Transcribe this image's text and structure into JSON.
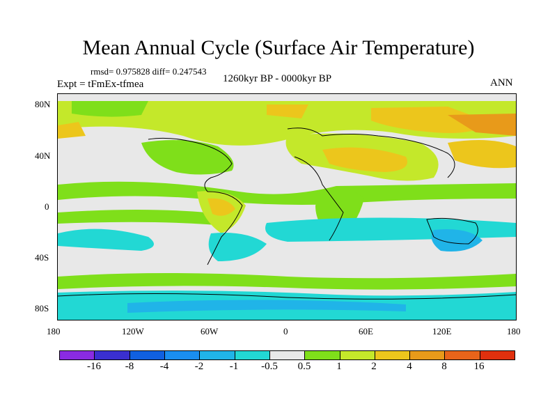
{
  "title": "Mean Annual Cycle (Surface Air Temperature)",
  "stats": "rmsd= 0.975828 diff= 0.247543",
  "expt": "Expt = tFmEx-tfmea",
  "period": "1260kyr BP - 0000kyr BP",
  "season": "ANN",
  "lat_labels": [
    "80N",
    "40N",
    "0",
    "40S",
    "80S"
  ],
  "lon_labels": [
    "180",
    "120W",
    "60W",
    "0",
    "60E",
    "120E",
    "180"
  ],
  "colorbar": {
    "colors": [
      "#8a2be2",
      "#3a2fd0",
      "#1060e0",
      "#1a8ef0",
      "#20b4e8",
      "#22d8d4",
      "#e8e8e8",
      "#7fdf1a",
      "#c4e82a",
      "#ecc61c",
      "#e89a1a",
      "#e8641a",
      "#e0300e"
    ],
    "labels": [
      "-16",
      "-8",
      "-4",
      "-2",
      "-1",
      "-0.5",
      "0.5",
      "1",
      "2",
      "4",
      "8",
      "16"
    ]
  }
}
